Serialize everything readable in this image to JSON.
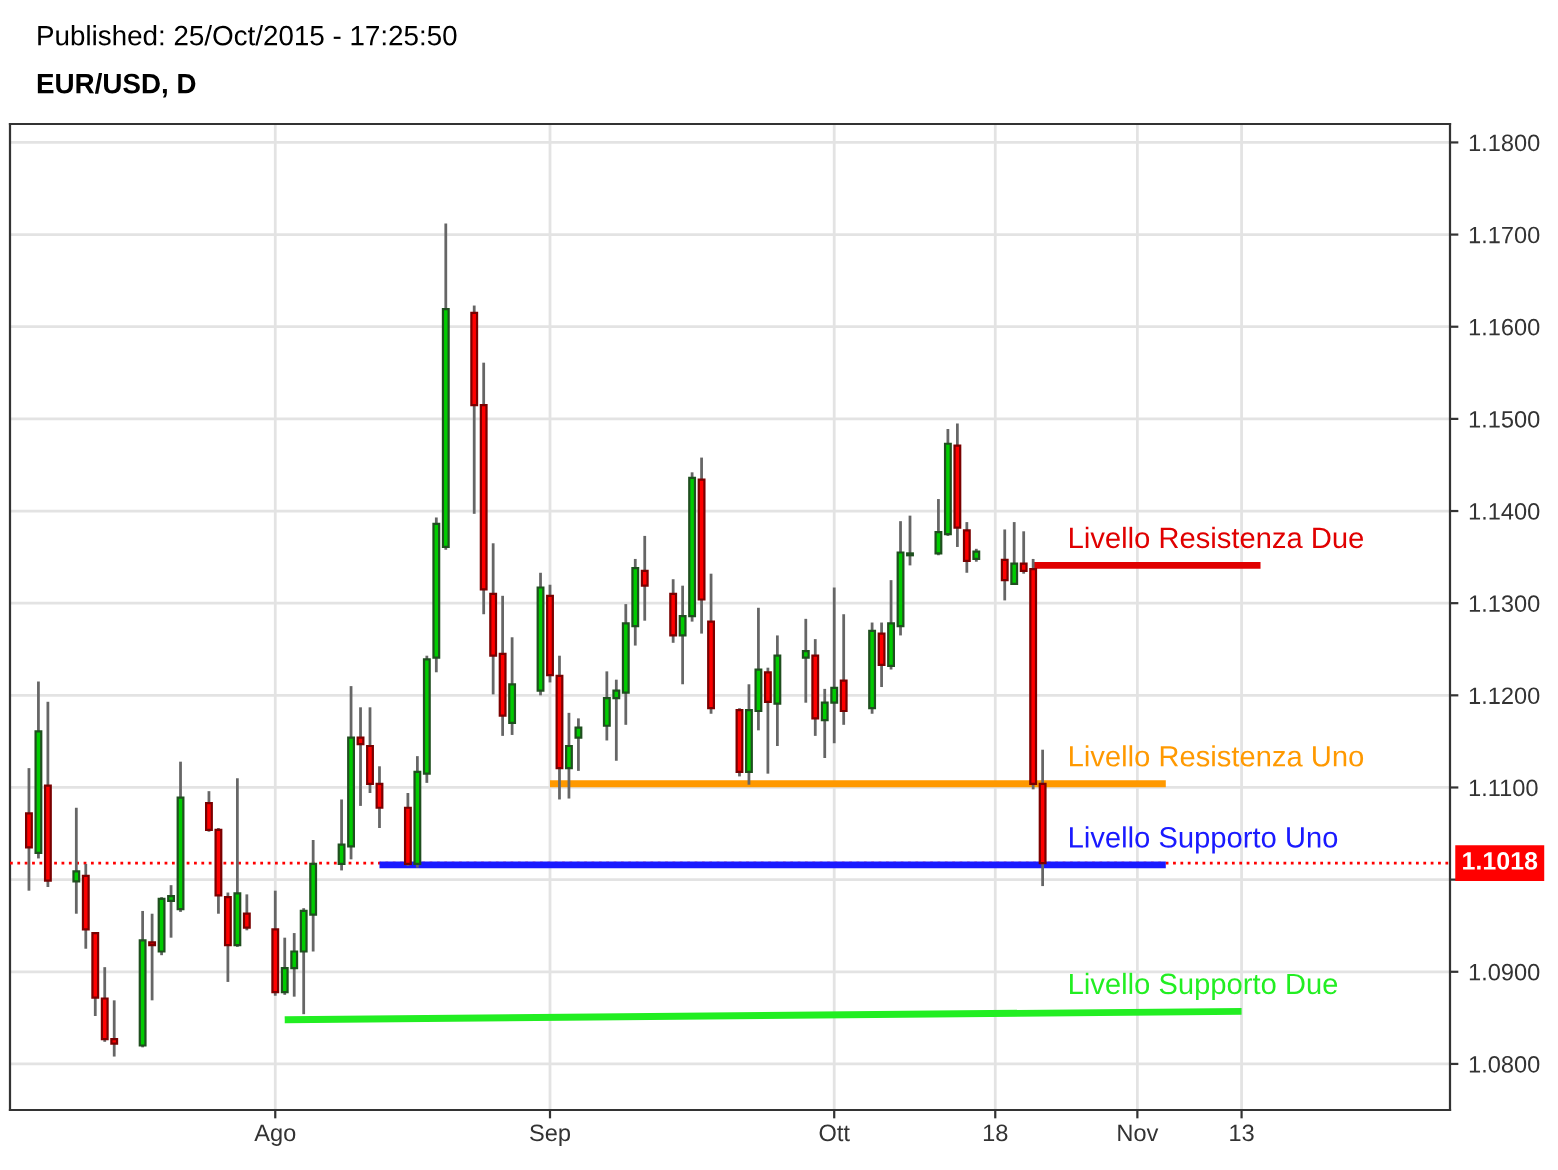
{
  "chart_data": {
    "type": "candlestick",
    "title": "Published: 25/Oct/2015 - 17:25:50",
    "subtitle": "EUR/USD, D",
    "x": [
      "2015-07-08",
      "2015-07-09",
      "2015-07-10",
      "2015-07-13",
      "2015-07-14",
      "2015-07-15",
      "2015-07-16",
      "2015-07-17",
      "2015-07-20",
      "2015-07-21",
      "2015-07-22",
      "2015-07-23",
      "2015-07-24",
      "2015-07-27",
      "2015-07-28",
      "2015-07-29",
      "2015-07-30",
      "2015-07-31",
      "2015-08-03",
      "2015-08-04",
      "2015-08-05",
      "2015-08-06",
      "2015-08-07",
      "2015-08-10",
      "2015-08-11",
      "2015-08-12",
      "2015-08-13",
      "2015-08-14",
      "2015-08-17",
      "2015-08-18",
      "2015-08-19",
      "2015-08-20",
      "2015-08-21",
      "2015-08-24",
      "2015-08-25",
      "2015-08-26",
      "2015-08-27",
      "2015-08-28",
      "2015-08-31",
      "2015-09-01",
      "2015-09-02",
      "2015-09-03",
      "2015-09-04",
      "2015-09-07",
      "2015-09-08",
      "2015-09-09",
      "2015-09-10",
      "2015-09-11",
      "2015-09-14",
      "2015-09-15",
      "2015-09-16",
      "2015-09-17",
      "2015-09-18",
      "2015-09-21",
      "2015-09-22",
      "2015-09-23",
      "2015-09-24",
      "2015-09-25",
      "2015-09-28",
      "2015-09-29",
      "2015-09-30",
      "2015-10-01",
      "2015-10-02",
      "2015-10-05",
      "2015-10-06",
      "2015-10-07",
      "2015-10-08",
      "2015-10-09",
      "2015-10-12",
      "2015-10-13",
      "2015-10-14",
      "2015-10-15",
      "2015-10-16",
      "2015-10-19",
      "2015-10-20",
      "2015-10-21",
      "2015-10-22",
      "2015-10-23"
    ],
    "ohlc": [
      [
        1.1072,
        1.1121,
        1.0988,
        1.1035
      ],
      [
        1.1029,
        1.1215,
        1.1023,
        1.1161
      ],
      [
        1.1102,
        1.1193,
        1.0992,
        1.0999
      ],
      [
        1.0998,
        1.1078,
        1.0963,
        1.1009
      ],
      [
        1.1004,
        1.1017,
        1.0925,
        1.0946
      ],
      [
        1.0942,
        1.0943,
        1.0852,
        1.0872
      ],
      [
        1.0871,
        1.0905,
        1.0824,
        1.0827
      ],
      [
        1.0827,
        1.0869,
        1.0808,
        1.0822
      ],
      [
        1.082,
        1.0966,
        1.0818,
        1.0934
      ],
      [
        1.0932,
        1.0963,
        1.0869,
        1.0929
      ],
      [
        1.0922,
        1.0981,
        1.0918,
        1.0979
      ],
      [
        1.0977,
        1.0994,
        1.0937,
        1.0982
      ],
      [
        1.0968,
        1.1128,
        1.0965,
        1.1089
      ],
      [
        1.1083,
        1.1096,
        1.1052,
        1.1054
      ],
      [
        1.1054,
        1.1056,
        1.0963,
        1.0983
      ],
      [
        1.0981,
        1.0986,
        1.0889,
        1.0929
      ],
      [
        1.0929,
        1.111,
        1.0927,
        1.0985
      ],
      [
        1.0963,
        1.0984,
        1.0945,
        1.0948
      ],
      [
        1.0946,
        1.0988,
        1.0874,
        1.0878
      ],
      [
        1.0878,
        1.0937,
        1.0875,
        1.0904
      ],
      [
        1.0904,
        1.0942,
        1.0873,
        1.0922
      ],
      [
        1.0922,
        1.0969,
        1.0854,
        1.0966
      ],
      [
        1.0962,
        1.1043,
        1.0922,
        1.1017
      ],
      [
        1.1017,
        1.1087,
        1.101,
        1.1038
      ],
      [
        1.1036,
        1.121,
        1.1022,
        1.1154
      ],
      [
        1.1154,
        1.1187,
        1.108,
        1.1147
      ],
      [
        1.1145,
        1.1187,
        1.1094,
        1.1104
      ],
      [
        1.1104,
        1.1123,
        1.1056,
        1.1078
      ],
      [
        1.1078,
        1.1094,
        1.1015,
        1.1017
      ],
      [
        1.1017,
        1.1134,
        1.1013,
        1.1117
      ],
      [
        1.1115,
        1.1243,
        1.1105,
        1.1239
      ],
      [
        1.1241,
        1.1393,
        1.1225,
        1.1386
      ],
      [
        1.1361,
        1.1712,
        1.1358,
        1.1619
      ],
      [
        1.1615,
        1.1623,
        1.1397,
        1.1515
      ],
      [
        1.1515,
        1.1561,
        1.1288,
        1.1315
      ],
      [
        1.131,
        1.1365,
        1.1201,
        1.1243
      ],
      [
        1.1245,
        1.1308,
        1.1156,
        1.1178
      ],
      [
        1.117,
        1.1263,
        1.1157,
        1.1212
      ],
      [
        1.1205,
        1.1333,
        1.12,
        1.1317
      ],
      [
        1.1308,
        1.132,
        1.1214,
        1.1222
      ],
      [
        1.1221,
        1.1243,
        1.1087,
        1.1121
      ],
      [
        1.1121,
        1.1181,
        1.1088,
        1.1145
      ],
      [
        1.1154,
        1.1175,
        1.1118,
        1.1165
      ],
      [
        1.1167,
        1.1226,
        1.1151,
        1.1197
      ],
      [
        1.1197,
        1.1217,
        1.1129,
        1.1205
      ],
      [
        1.1203,
        1.1299,
        1.1168,
        1.1278
      ],
      [
        1.1275,
        1.1348,
        1.1254,
        1.1338
      ],
      [
        1.1335,
        1.1373,
        1.1281,
        1.1319
      ],
      [
        1.131,
        1.1326,
        1.1257,
        1.1265
      ],
      [
        1.1265,
        1.1319,
        1.1212,
        1.1286
      ],
      [
        1.1286,
        1.1442,
        1.128,
        1.1436
      ],
      [
        1.1434,
        1.1458,
        1.1267,
        1.1304
      ],
      [
        1.128,
        1.1332,
        1.118,
        1.1186
      ],
      [
        1.1184,
        1.1186,
        1.1112,
        1.1117
      ],
      [
        1.1117,
        1.1212,
        1.1103,
        1.1184
      ],
      [
        1.1183,
        1.1295,
        1.1162,
        1.1228
      ],
      [
        1.1225,
        1.123,
        1.1115,
        1.1193
      ],
      [
        1.1191,
        1.1265,
        1.1145,
        1.1243
      ],
      [
        1.1241,
        1.1283,
        1.1192,
        1.1248
      ],
      [
        1.1243,
        1.1261,
        1.1156,
        1.1175
      ],
      [
        1.1173,
        1.1207,
        1.1132,
        1.1192
      ],
      [
        1.1192,
        1.1317,
        1.1148,
        1.1208
      ],
      [
        1.1216,
        1.1288,
        1.1168,
        1.1183
      ],
      [
        1.1186,
        1.1279,
        1.118,
        1.127
      ],
      [
        1.1267,
        1.1279,
        1.1209,
        1.1233
      ],
      [
        1.1232,
        1.1325,
        1.1228,
        1.1278
      ],
      [
        1.1275,
        1.1389,
        1.1265,
        1.1355
      ],
      [
        1.1352,
        1.1395,
        1.1341,
        1.1354
      ],
      [
        1.1354,
        1.1413,
        1.1352,
        1.1377
      ],
      [
        1.1375,
        1.1489,
        1.1373,
        1.1473
      ],
      [
        1.1471,
        1.1495,
        1.1361,
        1.1382
      ],
      [
        1.1379,
        1.1388,
        1.1333,
        1.1346
      ],
      [
        1.1348,
        1.1359,
        1.1345,
        1.1356
      ],
      [
        1.1347,
        1.138,
        1.1303,
        1.1325
      ],
      [
        1.1321,
        1.1388,
        1.132,
        1.1343
      ],
      [
        1.1343,
        1.1378,
        1.1332,
        1.1335
      ],
      [
        1.1337,
        1.1348,
        1.1098,
        1.1104
      ],
      [
        1.1104,
        1.1141,
        1.0993,
        1.1018
      ]
    ],
    "colors": [
      "#ff0000",
      "#00cc00",
      "#ff0000",
      "#00cc00",
      "#ff0000",
      "#ff0000",
      "#ff0000",
      "#ff0000",
      "#00cc00",
      "#ff0000",
      "#00cc00",
      "#00cc00",
      "#00cc00",
      "#ff0000",
      "#ff0000",
      "#ff0000",
      "#00cc00",
      "#ff0000",
      "#ff0000",
      "#00cc00",
      "#00cc00",
      "#00cc00",
      "#00cc00",
      "#00cc00",
      "#00cc00",
      "#ff0000",
      "#ff0000",
      "#ff0000",
      "#ff0000",
      "#00cc00",
      "#00cc00",
      "#00cc00",
      "#00cc00",
      "#ff0000",
      "#ff0000",
      "#ff0000",
      "#ff0000",
      "#00cc00",
      "#00cc00",
      "#ff0000",
      "#ff0000",
      "#00cc00",
      "#00cc00",
      "#00cc00",
      "#00cc00",
      "#00cc00",
      "#00cc00",
      "#ff0000",
      "#ff0000",
      "#00cc00",
      "#00cc00",
      "#ff0000",
      "#ff0000",
      "#ff0000",
      "#00cc00",
      "#00cc00",
      "#ff0000",
      "#00cc00",
      "#00cc00",
      "#ff0000",
      "#00cc00",
      "#00cc00",
      "#ff0000",
      "#00cc00",
      "#ff0000",
      "#00cc00",
      "#00cc00",
      "#00cc00",
      "#00cc00",
      "#00cc00",
      "#ff0000",
      "#ff0000",
      "#00cc00",
      "#ff0000",
      "#00cc00",
      "#ff0000",
      "#ff0000",
      "#ff0000"
    ],
    "series": [
      {
        "type": "line",
        "name": "Livello Resistenza Due",
        "color": "#e00000",
        "x": [
          "2015-10-22",
          "2015-11-15"
        ],
        "values": [
          1.1341,
          1.1341
        ]
      },
      {
        "type": "line",
        "name": "Livello Resistenza Uno",
        "color": "#ff9900",
        "x": [
          "2015-09-01",
          "2015-11-05"
        ],
        "values": [
          1.1104,
          1.1104
        ]
      },
      {
        "type": "line",
        "name": "Livello Supporto Uno",
        "color": "#1a1aff",
        "x": [
          "2015-08-14",
          "2015-11-05"
        ],
        "values": [
          1.1016,
          1.1016
        ]
      },
      {
        "type": "line",
        "name": "Livello Supporto Due",
        "color": "#22ee22",
        "x": [
          "2015-08-04",
          "2015-11-13"
        ],
        "values": [
          1.0848,
          1.0857
        ]
      }
    ],
    "ref_lines": [
      {
        "axis": "y",
        "value": 1.1018,
        "label": "1.1018",
        "color": "#ff0000",
        "line_style": "dotted"
      }
    ],
    "xlim": [
      "2015-07-06",
      "2015-12-05"
    ],
    "xticks": [
      {
        "value": "2015-08-03",
        "label": "Ago"
      },
      {
        "value": "2015-09-01",
        "label": "Sep"
      },
      {
        "value": "2015-10-01",
        "label": "Ott"
      },
      {
        "value": "2015-10-18",
        "label": "18"
      },
      {
        "value": "2015-11-02",
        "label": "Nov"
      },
      {
        "value": "2015-11-13",
        "label": "13"
      }
    ],
    "ylim": [
      1.075,
      1.182
    ],
    "yticks": [
      {
        "value": 1.08,
        "label": "1.0800"
      },
      {
        "value": 1.09,
        "label": "1.0900"
      },
      {
        "value": 1.1,
        "label": null
      },
      {
        "value": 1.11,
        "label": "1.1100"
      },
      {
        "value": 1.12,
        "label": "1.1200"
      },
      {
        "value": 1.13,
        "label": "1.1300"
      },
      {
        "value": 1.14,
        "label": "1.1400"
      },
      {
        "value": 1.15,
        "label": "1.1500"
      },
      {
        "value": 1.16,
        "label": "1.1600"
      },
      {
        "value": 1.17,
        "label": "1.1700"
      },
      {
        "value": 1.18,
        "label": "1.1800"
      }
    ],
    "grid": true
  }
}
